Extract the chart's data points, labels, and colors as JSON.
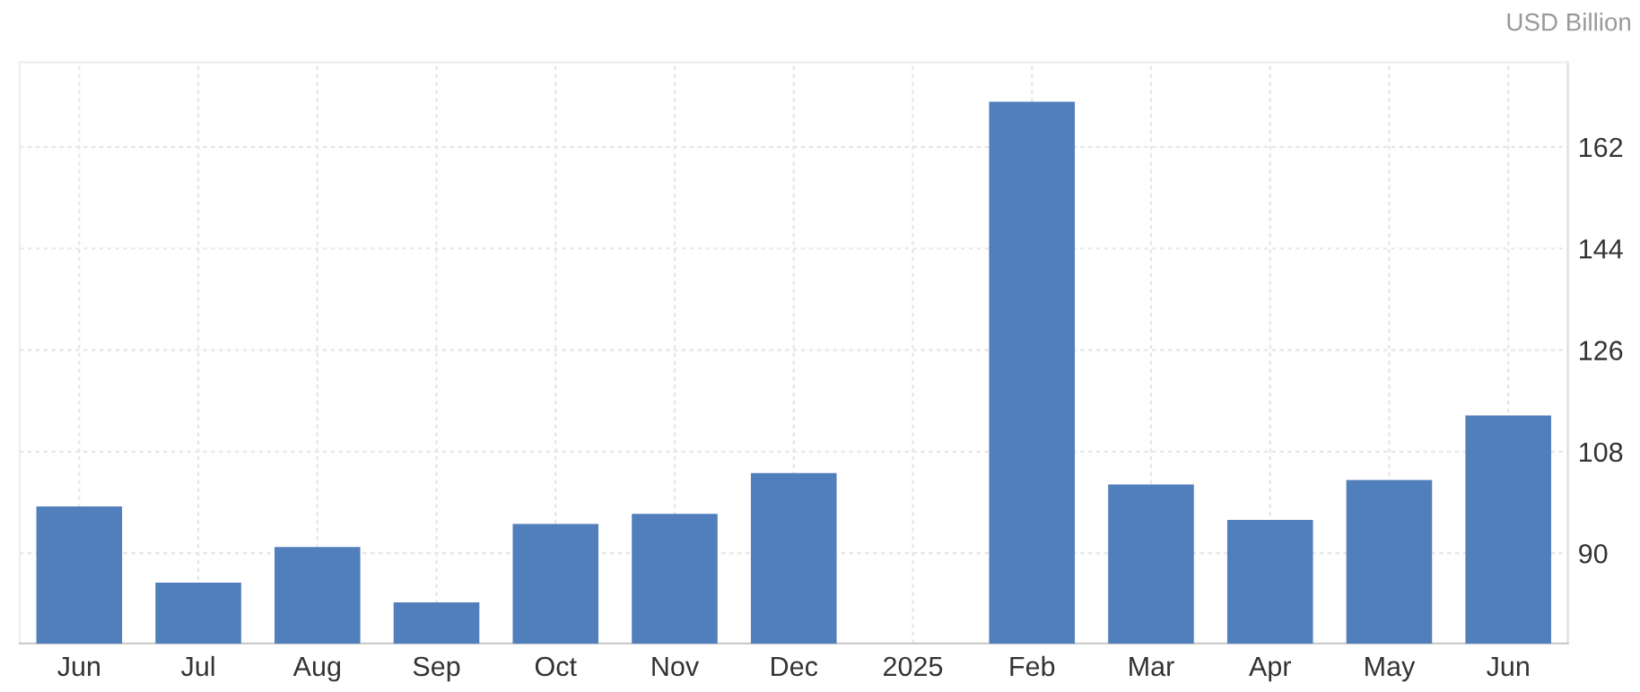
{
  "chart_data": {
    "type": "bar",
    "ylabel": "USD Billion",
    "categories": [
      "Jun",
      "Jul",
      "Aug",
      "Sep",
      "Oct",
      "Nov",
      "Dec",
      "2025",
      "Feb",
      "Mar",
      "Apr",
      "May",
      "Jun"
    ],
    "values": [
      98.3,
      84.8,
      91.1,
      81.3,
      95.2,
      97,
      104.2,
      null,
      170,
      102.2,
      95.9,
      103,
      114.4
    ],
    "color": "#517fbc",
    "ylim": [
      74,
      177
    ],
    "yticks": [
      90,
      108,
      126,
      144,
      162
    ],
    "grid": true
  }
}
